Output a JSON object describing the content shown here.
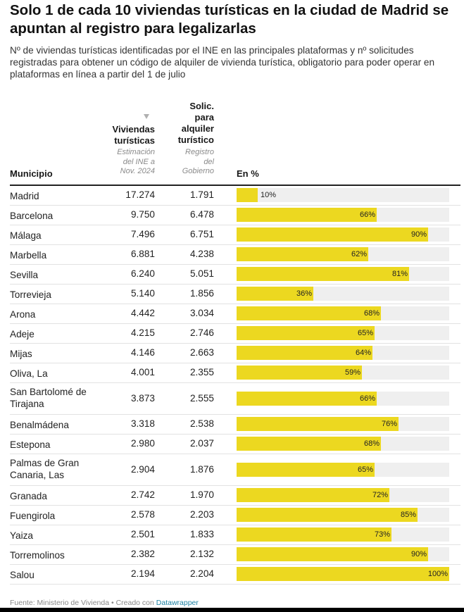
{
  "header": {
    "title": "Solo 1 de cada 10 viviendas turísticas en la ciudad de Madrid se apuntan al registro para legalizarlas",
    "subtitle": "Nº de viviendas turísticas identificadas por el INE en las principales plataformas y nº solicitudes registradas para obtener un código de alquiler de vivienda turística, obligatorio para poder operar en plataformas en línea a partir del 1 de julio"
  },
  "columns": {
    "municipio": "Municipio",
    "viviendas_l1": "Viviendas",
    "viviendas_l2": "turísticas",
    "viviendas_sub": [
      "Estimación",
      "del INE a",
      "Nov. 2024"
    ],
    "solic": [
      "Solic.",
      "para",
      "alquiler",
      "turístico"
    ],
    "solic_sub": [
      "Registro",
      "del",
      "Gobierno"
    ],
    "pct": "En %"
  },
  "colors": {
    "bar": "#ecd820",
    "track": "#efefef",
    "sort_arrow": "#b0b0b0"
  },
  "chart_data": {
    "type": "table",
    "sort": "Viviendas turísticas (descending)",
    "rows": [
      {
        "municipio": [
          "Madrid"
        ],
        "viviendas": "17.274",
        "solicitudes": "1.791",
        "pct": 10
      },
      {
        "municipio": [
          "Barcelona"
        ],
        "viviendas": "9.750",
        "solicitudes": "6.478",
        "pct": 66
      },
      {
        "municipio": [
          "Málaga"
        ],
        "viviendas": "7.496",
        "solicitudes": "6.751",
        "pct": 90
      },
      {
        "municipio": [
          "Marbella"
        ],
        "viviendas": "6.881",
        "solicitudes": "4.238",
        "pct": 62
      },
      {
        "municipio": [
          "Sevilla"
        ],
        "viviendas": "6.240",
        "solicitudes": "5.051",
        "pct": 81
      },
      {
        "municipio": [
          "Torrevieja"
        ],
        "viviendas": "5.140",
        "solicitudes": "1.856",
        "pct": 36
      },
      {
        "municipio": [
          "Arona"
        ],
        "viviendas": "4.442",
        "solicitudes": "3.034",
        "pct": 68
      },
      {
        "municipio": [
          "Adeje"
        ],
        "viviendas": "4.215",
        "solicitudes": "2.746",
        "pct": 65
      },
      {
        "municipio": [
          "Mijas"
        ],
        "viviendas": "4.146",
        "solicitudes": "2.663",
        "pct": 64
      },
      {
        "municipio": [
          "Oliva, La"
        ],
        "viviendas": "4.001",
        "solicitudes": "2.355",
        "pct": 59
      },
      {
        "municipio": [
          "San Bartolomé de",
          "Tirajana"
        ],
        "viviendas": "3.873",
        "solicitudes": "2.555",
        "pct": 66
      },
      {
        "municipio": [
          "Benalmádena"
        ],
        "viviendas": "3.318",
        "solicitudes": "2.538",
        "pct": 76
      },
      {
        "municipio": [
          "Estepona"
        ],
        "viviendas": "2.980",
        "solicitudes": "2.037",
        "pct": 68
      },
      {
        "municipio": [
          "Palmas de Gran",
          "Canaria, Las"
        ],
        "viviendas": "2.904",
        "solicitudes": "1.876",
        "pct": 65
      },
      {
        "municipio": [
          "Granada"
        ],
        "viviendas": "2.742",
        "solicitudes": "1.970",
        "pct": 72
      },
      {
        "municipio": [
          "Fuengirola"
        ],
        "viviendas": "2.578",
        "solicitudes": "2.203",
        "pct": 85
      },
      {
        "municipio": [
          "Yaiza"
        ],
        "viviendas": "2.501",
        "solicitudes": "1.833",
        "pct": 73
      },
      {
        "municipio": [
          "Torremolinos"
        ],
        "viviendas": "2.382",
        "solicitudes": "2.132",
        "pct": 90
      },
      {
        "municipio": [
          "Salou"
        ],
        "viviendas": "2.194",
        "solicitudes": "2.204",
        "pct": 100
      }
    ]
  },
  "footer": {
    "source": "Fuente: Ministerio de Vivienda • Creado con ",
    "link": "Datawrapper"
  }
}
